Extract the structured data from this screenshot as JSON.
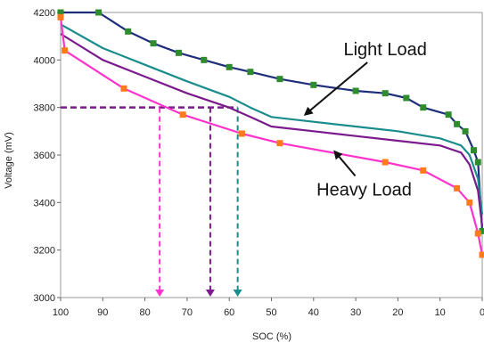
{
  "chart_data": {
    "type": "line",
    "title": "",
    "xlabel": "SOC (%)",
    "ylabel": "Voltage (mV)",
    "xlim": [
      100,
      0
    ],
    "ylim": [
      3000,
      4200
    ],
    "x_ticks": [
      "100",
      "90",
      "80",
      "70",
      "60",
      "50",
      "40",
      "30",
      "20",
      "10",
      "0"
    ],
    "y_ticks": [
      "3000",
      "3200",
      "3400",
      "3600",
      "3800",
      "4000",
      "4200"
    ],
    "grid": false,
    "series": [
      {
        "color": "#1f2e7a",
        "marker": "square",
        "marker_color": "#2e8b2e",
        "x": [
          100,
          91,
          84,
          78,
          72,
          66,
          60,
          55,
          48,
          40,
          30,
          23,
          18,
          14,
          8,
          6,
          4,
          2,
          1,
          0
        ],
        "y": [
          4200,
          4200,
          4120,
          4070,
          4030,
          4000,
          3970,
          3950,
          3920,
          3895,
          3870,
          3860,
          3840,
          3800,
          3770,
          3730,
          3700,
          3620,
          3570,
          3280
        ]
      },
      {
        "color": "#1a8c8c",
        "x": [
          100,
          90,
          80,
          70,
          60,
          55,
          50,
          40,
          30,
          20,
          10,
          5,
          3,
          1,
          0
        ],
        "y": [
          4150,
          4050,
          3980,
          3910,
          3845,
          3800,
          3760,
          3740,
          3720,
          3700,
          3670,
          3640,
          3600,
          3500,
          3350
        ]
      },
      {
        "color": "#7a1a8c",
        "x": [
          100,
          90,
          80,
          70,
          60,
          55,
          50,
          40,
          30,
          20,
          10,
          5,
          3,
          1,
          0
        ],
        "y": [
          4110,
          4000,
          3930,
          3860,
          3800,
          3760,
          3720,
          3700,
          3680,
          3660,
          3640,
          3610,
          3560,
          3450,
          3300
        ]
      },
      {
        "color": "#ff33cc",
        "marker": "square",
        "marker_color": "#ff7a1a",
        "x": [
          100,
          99,
          85,
          71,
          57,
          48,
          23,
          14,
          6,
          3,
          1,
          0
        ],
        "y": [
          4180,
          4040,
          3880,
          3770,
          3690,
          3650,
          3570,
          3535,
          3460,
          3400,
          3270,
          3180
        ]
      }
    ],
    "threshold_line": {
      "y": 3800,
      "x_from": 100,
      "x_to": 58
    },
    "drop_lines": [
      {
        "x": 76.5,
        "color": "#ff33cc"
      },
      {
        "x": 64.5,
        "color": "#7a1a8c"
      },
      {
        "x": 58,
        "color": "#1a8c8c"
      }
    ],
    "annotations": [
      {
        "text": "Light Load",
        "x": 23,
        "y": 4020,
        "arrow_to": [
          42,
          3770
        ]
      },
      {
        "text": "Heavy Load",
        "x": 28,
        "y": 3430,
        "arrow_to": [
          35,
          3615
        ]
      }
    ]
  }
}
